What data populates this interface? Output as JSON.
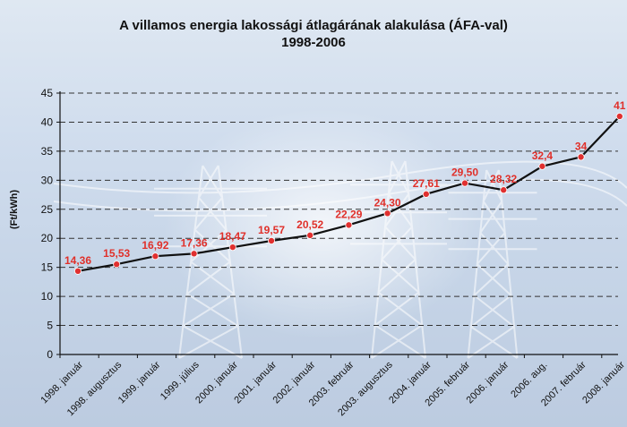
{
  "chart_data": {
    "type": "line",
    "title": "A villamos energia lakossági átlagárának alakulása (ÁFA-val)",
    "subtitle": "1998-2006",
    "ylabel": "(Ft/kWh)",
    "xlabel": "",
    "ylim": [
      0,
      45
    ],
    "yticks": [
      "0",
      "5",
      "10",
      "15",
      "20",
      "25",
      "30",
      "35",
      "40",
      "45"
    ],
    "grid": "horizontal dashed",
    "categories": [
      "1998. január",
      "1998. augusztus",
      "1999. január",
      "1999. július",
      "2000. január",
      "2001. január",
      "2002. január",
      "2003. február",
      "2003. augusztus",
      "2004. január",
      "2005. február",
      "2006. január",
      "2006. aug.",
      "2007. február",
      "2008. január"
    ],
    "values": [
      14.36,
      15.53,
      16.92,
      17.36,
      18.47,
      19.57,
      20.52,
      22.29,
      24.3,
      27.61,
      29.5,
      28.32,
      32.4,
      34,
      41
    ],
    "data_labels": [
      "14,36",
      "15,53",
      "16,92",
      "17,36",
      "18,47",
      "19,57",
      "20,52",
      "22,29",
      "24,30",
      "27,61",
      "29,50",
      "28,32",
      "32,4",
      "34",
      "41"
    ],
    "colors": {
      "line": "#111111",
      "marker": "#e03030",
      "label": "#e0302a",
      "grid": "#333333"
    }
  }
}
